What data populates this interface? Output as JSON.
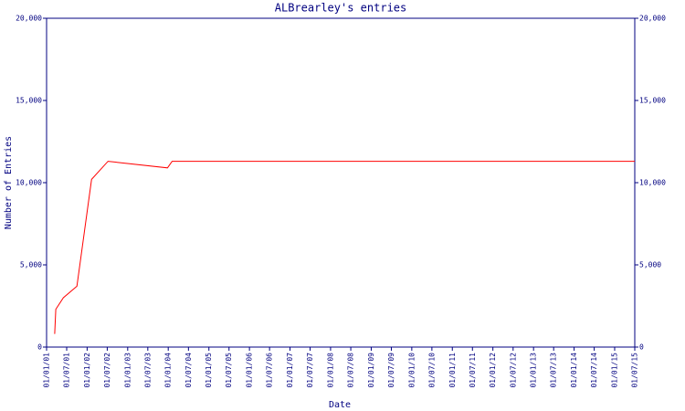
{
  "chart_data": {
    "type": "line",
    "title": "ALBrearley's entries",
    "x_label": "Date",
    "y_label": "Number of Entries",
    "x": [
      "15/03/01",
      "25/03/01",
      "01/06/01",
      "01/10/01",
      "10/02/02",
      "08/07/02",
      "25/12/03",
      "05/02/04",
      "01/07/15"
    ],
    "values": [
      800,
      2300,
      3000,
      3700,
      10200,
      11300,
      10900,
      11300,
      11300
    ],
    "color": "#ff0000",
    "axis_color": "#000080",
    "xlim": [
      "01/01/01",
      "01/07/15"
    ],
    "xticks": [
      "01/01/01",
      "01/07/01",
      "01/01/02",
      "01/07/02",
      "01/01/03",
      "01/07/03",
      "01/01/04",
      "01/07/04",
      "01/01/05",
      "01/07/05",
      "01/01/06",
      "01/07/06",
      "01/01/07",
      "01/07/07",
      "01/01/08",
      "01/07/08",
      "01/01/09",
      "01/07/09",
      "01/01/10",
      "01/07/10",
      "01/01/11",
      "01/07/11",
      "01/01/12",
      "01/07/12",
      "01/01/13",
      "01/07/13",
      "01/01/14",
      "01/07/14",
      "01/01/15",
      "01/07/15"
    ],
    "ylim": [
      0,
      20000
    ],
    "yticks": [
      0,
      {
        "value": 5000,
        "label": "5,000"
      },
      {
        "value": 10000,
        "label": "10,000"
      },
      {
        "value": 15000,
        "label": "15,000"
      },
      {
        "value": 20000,
        "label": "20,000"
      }
    ]
  }
}
